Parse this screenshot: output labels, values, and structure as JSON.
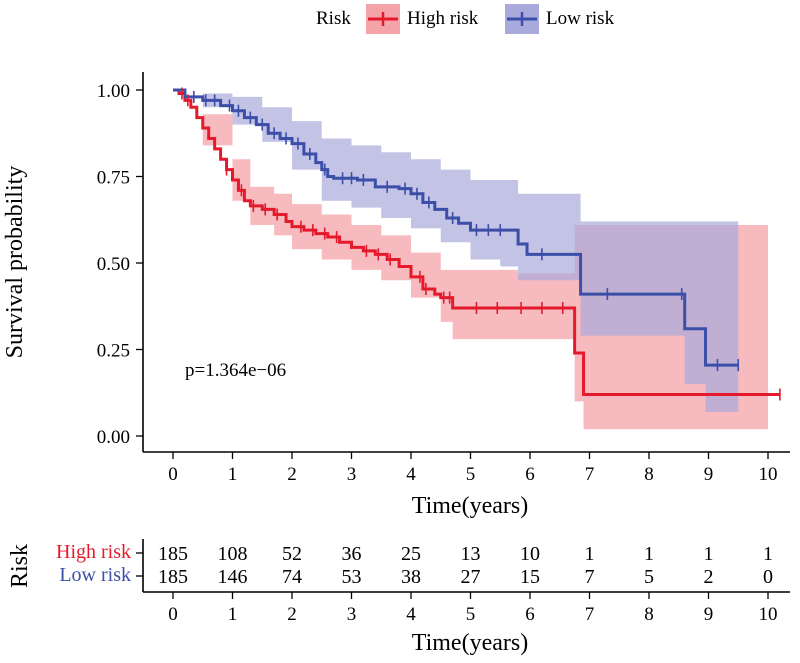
{
  "chart_data": {
    "type": "line",
    "title": "",
    "xlabel": "Time(years)",
    "ylabel": "Survival probability",
    "xlim": [
      0,
      10
    ],
    "ylim": [
      0,
      1
    ],
    "x_ticks": [
      "0",
      "1",
      "2",
      "3",
      "4",
      "5",
      "6",
      "7",
      "8",
      "9",
      "10"
    ],
    "y_ticks": [
      "0.00",
      "0.25",
      "0.50",
      "0.75",
      "1.00"
    ],
    "legend_title": "Risk",
    "legend_position": "top",
    "annotation": "p=1.364e−06",
    "series": [
      {
        "name": "High risk",
        "color": "#e41a2c",
        "ci_color": "#f4a3a8",
        "steps": [
          [
            0,
            1.0
          ],
          [
            0.1,
            0.99
          ],
          [
            0.2,
            0.97
          ],
          [
            0.3,
            0.95
          ],
          [
            0.4,
            0.92
          ],
          [
            0.5,
            0.89
          ],
          [
            0.6,
            0.86
          ],
          [
            0.7,
            0.83
          ],
          [
            0.8,
            0.8
          ],
          [
            0.9,
            0.77
          ],
          [
            1.0,
            0.74
          ],
          [
            1.1,
            0.71
          ],
          [
            1.2,
            0.68
          ],
          [
            1.3,
            0.665
          ],
          [
            1.5,
            0.655
          ],
          [
            1.7,
            0.64
          ],
          [
            1.9,
            0.62
          ],
          [
            2.0,
            0.605
          ],
          [
            2.2,
            0.595
          ],
          [
            2.4,
            0.585
          ],
          [
            2.6,
            0.575
          ],
          [
            2.8,
            0.56
          ],
          [
            3.0,
            0.545
          ],
          [
            3.2,
            0.535
          ],
          [
            3.4,
            0.525
          ],
          [
            3.6,
            0.51
          ],
          [
            3.8,
            0.49
          ],
          [
            4.0,
            0.46
          ],
          [
            4.2,
            0.425
          ],
          [
            4.4,
            0.41
          ],
          [
            4.5,
            0.4
          ],
          [
            4.7,
            0.37
          ],
          [
            6.75,
            0.24
          ],
          [
            6.9,
            0.12
          ],
          [
            10.2,
            0.12
          ]
        ],
        "ci_upper": [
          [
            0,
            1.0
          ],
          [
            0.5,
            0.93
          ],
          [
            1.0,
            0.8
          ],
          [
            1.3,
            0.72
          ],
          [
            1.7,
            0.7
          ],
          [
            2.0,
            0.67
          ],
          [
            2.5,
            0.64
          ],
          [
            3.0,
            0.61
          ],
          [
            3.5,
            0.58
          ],
          [
            4.0,
            0.53
          ],
          [
            4.5,
            0.48
          ],
          [
            5.8,
            0.47
          ],
          [
            6.75,
            0.61
          ],
          [
            10.0,
            0.61
          ]
        ],
        "ci_lower": [
          [
            0,
            1.0
          ],
          [
            0.5,
            0.84
          ],
          [
            1.0,
            0.68
          ],
          [
            1.3,
            0.61
          ],
          [
            1.7,
            0.58
          ],
          [
            2.0,
            0.54
          ],
          [
            2.5,
            0.51
          ],
          [
            3.0,
            0.48
          ],
          [
            3.5,
            0.45
          ],
          [
            4.0,
            0.4
          ],
          [
            4.5,
            0.33
          ],
          [
            4.7,
            0.28
          ],
          [
            6.75,
            0.1
          ],
          [
            6.9,
            0.02
          ],
          [
            10.0,
            0.02
          ]
        ],
        "censor_x": [
          0.15,
          0.25,
          0.9,
          1.15,
          1.35,
          1.55,
          1.75,
          2.15,
          2.35,
          2.55,
          2.75,
          3.25,
          3.45,
          3.65,
          4.15,
          4.25,
          4.55,
          4.65,
          5.1,
          5.45,
          5.85,
          6.2,
          6.55,
          10.2
        ]
      },
      {
        "name": "Low risk",
        "color": "#3b4ea8",
        "ci_color": "#a9a9dc",
        "steps": [
          [
            0,
            1.0
          ],
          [
            0.2,
            0.98
          ],
          [
            0.5,
            0.97
          ],
          [
            0.8,
            0.955
          ],
          [
            1.0,
            0.94
          ],
          [
            1.2,
            0.92
          ],
          [
            1.4,
            0.9
          ],
          [
            1.6,
            0.875
          ],
          [
            1.8,
            0.86
          ],
          [
            2.0,
            0.845
          ],
          [
            2.2,
            0.815
          ],
          [
            2.4,
            0.79
          ],
          [
            2.5,
            0.77
          ],
          [
            2.6,
            0.75
          ],
          [
            2.7,
            0.745
          ],
          [
            3.1,
            0.74
          ],
          [
            3.4,
            0.72
          ],
          [
            3.8,
            0.715
          ],
          [
            4.0,
            0.7
          ],
          [
            4.2,
            0.675
          ],
          [
            4.4,
            0.655
          ],
          [
            4.6,
            0.63
          ],
          [
            4.8,
            0.615
          ],
          [
            5.0,
            0.595
          ],
          [
            5.8,
            0.555
          ],
          [
            5.95,
            0.525
          ],
          [
            6.85,
            0.41
          ],
          [
            8.6,
            0.31
          ],
          [
            8.95,
            0.205
          ],
          [
            9.5,
            0.205
          ]
        ],
        "ci_upper": [
          [
            0,
            1.0
          ],
          [
            0.5,
            0.99
          ],
          [
            1.0,
            0.98
          ],
          [
            1.5,
            0.95
          ],
          [
            2.0,
            0.91
          ],
          [
            2.5,
            0.86
          ],
          [
            3.0,
            0.84
          ],
          [
            3.5,
            0.82
          ],
          [
            4.0,
            0.8
          ],
          [
            4.5,
            0.77
          ],
          [
            5.0,
            0.74
          ],
          [
            5.8,
            0.7
          ],
          [
            6.85,
            0.62
          ],
          [
            9.5,
            0.59
          ]
        ],
        "ci_lower": [
          [
            0,
            1.0
          ],
          [
            0.5,
            0.95
          ],
          [
            1.0,
            0.9
          ],
          [
            1.5,
            0.85
          ],
          [
            2.0,
            0.77
          ],
          [
            2.5,
            0.68
          ],
          [
            3.0,
            0.66
          ],
          [
            3.5,
            0.63
          ],
          [
            4.0,
            0.6
          ],
          [
            4.5,
            0.56
          ],
          [
            5.0,
            0.51
          ],
          [
            5.5,
            0.49
          ],
          [
            5.8,
            0.45
          ],
          [
            6.85,
            0.29
          ],
          [
            8.6,
            0.15
          ],
          [
            8.95,
            0.07
          ],
          [
            9.5,
            0.07
          ]
        ],
        "censor_x": [
          0.35,
          0.55,
          0.7,
          0.95,
          1.1,
          1.3,
          1.5,
          1.7,
          1.9,
          2.1,
          2.3,
          2.55,
          2.85,
          3.0,
          3.2,
          3.6,
          3.9,
          4.1,
          4.3,
          4.7,
          5.1,
          5.3,
          5.5,
          6.2,
          7.3,
          8.55,
          9.15,
          9.5
        ]
      }
    ],
    "risk_table": {
      "ylabel": "Risk",
      "xlabel": "Time(years)",
      "rows": [
        {
          "name": "High risk",
          "color": "#e41a2c",
          "values": [
            "185",
            "108",
            "52",
            "36",
            "25",
            "13",
            "10",
            "1",
            "1",
            "1",
            "1"
          ]
        },
        {
          "name": "Low risk",
          "color": "#3b4ea8",
          "values": [
            "185",
            "146",
            "74",
            "53",
            "38",
            "27",
            "15",
            "7",
            "5",
            "2",
            "0"
          ]
        }
      ]
    }
  }
}
